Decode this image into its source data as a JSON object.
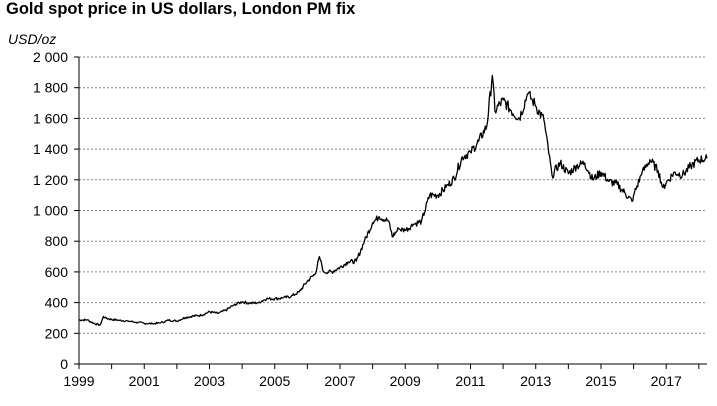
{
  "chart_data": {
    "type": "line",
    "title": "Gold spot price in US dollars, London PM fix",
    "ylabel": "USD/oz",
    "xlabel": "",
    "xlim": [
      1999,
      2018.25
    ],
    "ylim": [
      0,
      2000
    ],
    "ytick_values": [
      0,
      200,
      400,
      600,
      800,
      1000,
      1200,
      1400,
      1600,
      1800,
      2000
    ],
    "ytick_labels": [
      "0",
      "200",
      "400",
      "600",
      "800",
      "1 000",
      "1 200",
      "1 400",
      "1 600",
      "1 800",
      "2 000"
    ],
    "xtick_values": [
      1999,
      2001,
      2003,
      2005,
      2007,
      2009,
      2011,
      2013,
      2015,
      2017
    ],
    "xtick_labels": [
      "1999",
      "2001",
      "2003",
      "2005",
      "2007",
      "2009",
      "2011",
      "2013",
      "2015",
      "2017"
    ],
    "grid": "horizontal dotted",
    "line_color": "#000000",
    "series": [
      {
        "x": [
          1999.0,
          1999.25,
          1999.5,
          1999.65,
          1999.75,
          1999.8,
          1999.9,
          2000.0,
          2000.25,
          2000.5,
          2000.75,
          2001.0,
          2001.25,
          2001.5,
          2001.75,
          2002.0,
          2002.25,
          2002.5,
          2002.75,
          2003.0,
          2003.25,
          2003.5,
          2003.75,
          2004.0,
          2004.25,
          2004.5,
          2004.75,
          2005.0,
          2005.25,
          2005.5,
          2005.75,
          2006.0,
          2006.25,
          2006.37,
          2006.5,
          2006.75,
          2007.0,
          2007.25,
          2007.5,
          2007.75,
          2008.0,
          2008.2,
          2008.5,
          2008.6,
          2008.8,
          2009.0,
          2009.25,
          2009.5,
          2009.75,
          2010.0,
          2010.25,
          2010.5,
          2010.75,
          2011.0,
          2011.25,
          2011.5,
          2011.67,
          2011.75,
          2012.0,
          2012.25,
          2012.5,
          2012.75,
          2012.9,
          2013.0,
          2013.25,
          2013.4,
          2013.5,
          2013.75,
          2014.0,
          2014.25,
          2014.5,
          2014.75,
          2015.0,
          2015.25,
          2015.5,
          2015.75,
          2015.95,
          2016.0,
          2016.25,
          2016.5,
          2016.75,
          2016.9,
          2017.0,
          2017.25,
          2017.5,
          2017.75,
          2018.0,
          2018.25
        ],
        "values": [
          287,
          287,
          260,
          255,
          310,
          300,
          295,
          290,
          285,
          280,
          272,
          265,
          262,
          268,
          285,
          280,
          302,
          312,
          318,
          340,
          330,
          350,
          385,
          405,
          395,
          400,
          425,
          425,
          430,
          440,
          470,
          540,
          590,
          700,
          600,
          600,
          630,
          665,
          670,
          800,
          920,
          960,
          930,
          830,
          880,
          870,
          910,
          930,
          1100,
          1100,
          1150,
          1210,
          1350,
          1380,
          1450,
          1550,
          1880,
          1650,
          1720,
          1650,
          1600,
          1760,
          1720,
          1680,
          1590,
          1370,
          1230,
          1310,
          1240,
          1290,
          1310,
          1200,
          1250,
          1190,
          1170,
          1110,
          1060,
          1100,
          1240,
          1330,
          1260,
          1150,
          1180,
          1250,
          1230,
          1290,
          1330,
          1340
        ]
      }
    ]
  }
}
